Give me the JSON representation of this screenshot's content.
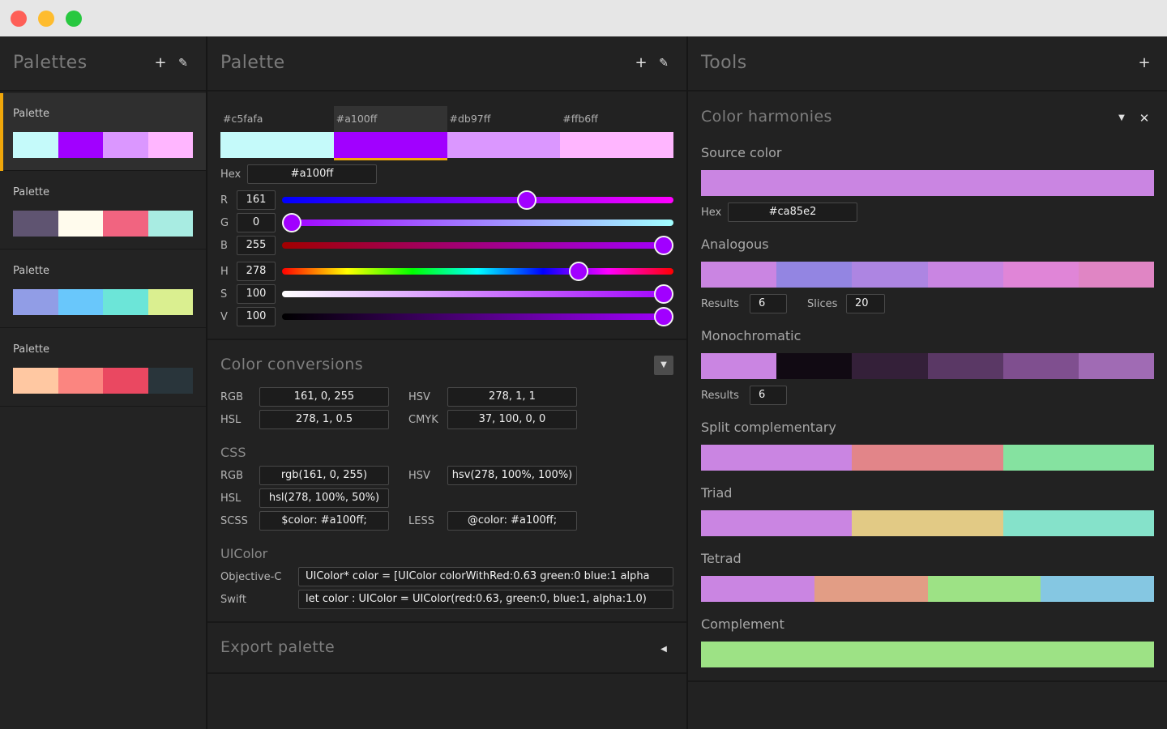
{
  "palettes_panel": {
    "title": "Palettes",
    "add_icon": "plus-icon",
    "edit_icon": "pencil-icon",
    "items": [
      {
        "name": "Palette",
        "colors": [
          "#c5fafa",
          "#a100ff",
          "#db97ff",
          "#ffb6ff"
        ]
      },
      {
        "name": "Palette",
        "colors": [
          "#5f5471",
          "#fffbed",
          "#f16480",
          "#a8ece2"
        ]
      },
      {
        "name": "Palette",
        "colors": [
          "#919de6",
          "#69c7fb",
          "#6ce5d8",
          "#daef90"
        ]
      },
      {
        "name": "Palette",
        "colors": [
          "#ffc8a2",
          "#fb8580",
          "#ea4861",
          "#29353b"
        ]
      }
    ]
  },
  "palette_panel": {
    "title": "Palette",
    "swatches": [
      {
        "label": "#c5fafa",
        "color": "#c5fafa"
      },
      {
        "label": "#a100ff",
        "color": "#a100ff"
      },
      {
        "label": "#db97ff",
        "color": "#db97ff"
      },
      {
        "label": "#ffb6ff",
        "color": "#ffb6ff"
      }
    ],
    "hex_label": "Hex",
    "hex_value": "#a100ff",
    "sliders": [
      {
        "label": "R",
        "value": "161",
        "fraction": 0.631
      },
      {
        "label": "G",
        "value": "0",
        "fraction": 0
      },
      {
        "label": "B",
        "value": "255",
        "fraction": 1
      },
      {
        "label": "H",
        "value": "278",
        "fraction": 0.772
      },
      {
        "label": "S",
        "value": "100",
        "fraction": 1
      },
      {
        "label": "V",
        "value": "100",
        "fraction": 1
      }
    ],
    "conversions": {
      "title": "Color conversions",
      "rgb_label": "RGB",
      "rgb_value": "161, 0, 255",
      "hsv_label": "HSV",
      "hsv_value": "278, 1, 1",
      "hsl_label": "HSL",
      "hsl_value": "278, 1, 0.5",
      "cmyk_label": "CMYK",
      "cmyk_value": "37, 100, 0, 0",
      "css_title": "CSS",
      "css_rgb_label": "RGB",
      "css_rgb_value": "rgb(161, 0, 255)",
      "css_hsv_label": "HSV",
      "css_hsv_value": "hsv(278, 100%, 100%)",
      "css_hsl_label": "HSL",
      "css_hsl_value": "hsl(278, 100%, 50%)",
      "scss_label": "SCSS",
      "scss_value": "$color: #a100ff;",
      "less_label": "LESS",
      "less_value": "@color: #a100ff;",
      "uicolor_title": "UIColor",
      "objc_label": "Objective-C",
      "objc_value": "UIColor* color = [UIColor colorWithRed:0.63 green:0 blue:1 alpha",
      "swift_label": "Swift",
      "swift_value": "let color : UIColor = UIColor(red:0.63, green:0, blue:1, alpha:1.0)"
    },
    "export_title": "Export palette"
  },
  "tools_panel": {
    "title": "Tools",
    "harmonies_title": "Color harmonies",
    "source_color_label": "Source color",
    "source_color": "#ca85e2",
    "hex_label": "Hex",
    "hex_value": "#ca85e2",
    "analogous": {
      "title": "Analogous",
      "colors": [
        "#ca85e2",
        "#9385e2",
        "#ad85e2",
        "#c985e2",
        "#e085d7",
        "#e085c4"
      ],
      "results_label": "Results",
      "results_value": "6",
      "slices_label": "Slices",
      "slices_value": "20"
    },
    "monochromatic": {
      "title": "Monochromatic",
      "colors": [
        "#ca85e2",
        "#110a13",
        "#342039",
        "#5a3865",
        "#7f4f8f",
        "#a06bb4"
      ],
      "results_label": "Results",
      "results_value": "6"
    },
    "split_complementary": {
      "title": "Split complementary",
      "colors": [
        "#ca85e2",
        "#e28589",
        "#85e2a0"
      ]
    },
    "triad": {
      "title": "Triad",
      "colors": [
        "#ca85e2",
        "#e2ca85",
        "#85e2ca"
      ]
    },
    "tetrad": {
      "title": "Tetrad",
      "colors": [
        "#ca85e2",
        "#e29d85",
        "#9de285",
        "#85c7e2"
      ]
    },
    "complement": {
      "title": "Complement",
      "colors": [
        "#9de285"
      ]
    }
  }
}
